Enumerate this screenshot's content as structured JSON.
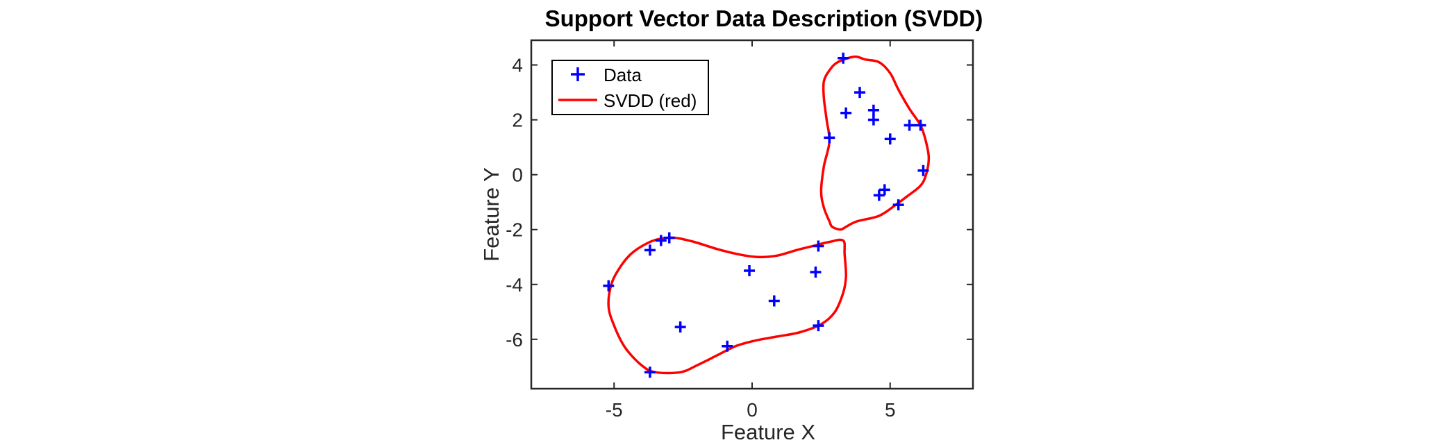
{
  "chart_data": {
    "type": "scatter",
    "title": "Support Vector Data Description (SVDD)",
    "xlabel": "Feature X",
    "ylabel": "Feature Y",
    "xlim": [
      -8,
      8
    ],
    "ylim": [
      -7.8,
      4.9
    ],
    "xticks": [
      -5,
      0,
      5
    ],
    "yticks": [
      -6,
      -4,
      -2,
      0,
      2,
      4
    ],
    "grid": false,
    "legend_location": "top-left",
    "legend": [
      {
        "label": "Data",
        "marker": "+",
        "color": "#0000ff"
      },
      {
        "label": "SVDD (red)",
        "marker": "line",
        "color": "#ff0000"
      }
    ],
    "series": [
      {
        "name": "Data",
        "kind": "scatter",
        "marker": "+",
        "color": "#0000ff",
        "points": [
          [
            3.3,
            4.25
          ],
          [
            3.9,
            3.0
          ],
          [
            4.4,
            2.35
          ],
          [
            3.4,
            2.25
          ],
          [
            4.4,
            2.0
          ],
          [
            5.7,
            1.8
          ],
          [
            6.1,
            1.8
          ],
          [
            2.8,
            1.35
          ],
          [
            5.0,
            1.3
          ],
          [
            6.2,
            0.15
          ],
          [
            4.8,
            -0.55
          ],
          [
            4.6,
            -0.75
          ],
          [
            5.3,
            -1.1
          ],
          [
            -3.7,
            -2.75
          ],
          [
            -3.3,
            -2.4
          ],
          [
            -3.0,
            -2.3
          ],
          [
            2.4,
            -2.6
          ],
          [
            -5.2,
            -4.05
          ],
          [
            -0.1,
            -3.5
          ],
          [
            2.3,
            -3.55
          ],
          [
            0.8,
            -4.6
          ],
          [
            -2.6,
            -5.55
          ],
          [
            2.4,
            -5.5
          ],
          [
            -0.9,
            -6.25
          ],
          [
            -3.7,
            -7.2
          ]
        ]
      },
      {
        "name": "SVDD (red)",
        "kind": "line",
        "color": "#ff0000",
        "boundaries": [
          [
            [
              2.8,
              -1.7
            ],
            [
              2.6,
              -1.2
            ],
            [
              2.5,
              -0.6
            ],
            [
              2.6,
              0.3
            ],
            [
              2.8,
              1.2
            ],
            [
              2.7,
              2.0
            ],
            [
              2.6,
              2.8
            ],
            [
              2.6,
              3.4
            ],
            [
              2.8,
              3.8
            ],
            [
              3.1,
              4.1
            ],
            [
              3.7,
              4.3
            ],
            [
              4.1,
              4.2
            ],
            [
              4.6,
              4.1
            ],
            [
              5.0,
              3.7
            ],
            [
              5.3,
              3.1
            ],
            [
              5.7,
              2.4
            ],
            [
              6.1,
              1.8
            ],
            [
              6.3,
              1.2
            ],
            [
              6.4,
              0.6
            ],
            [
              6.3,
              0.0
            ],
            [
              6.1,
              -0.4
            ],
            [
              5.6,
              -0.8
            ],
            [
              5.2,
              -1.1
            ],
            [
              4.6,
              -1.5
            ],
            [
              3.8,
              -1.7
            ],
            [
              3.4,
              -1.9
            ],
            [
              3.2,
              -2.0
            ],
            [
              2.9,
              -1.9
            ],
            [
              2.8,
              -1.7
            ]
          ],
          [
            [
              3.3,
              -2.4
            ],
            [
              2.8,
              -2.45
            ],
            [
              2.2,
              -2.6
            ],
            [
              1.6,
              -2.75
            ],
            [
              0.9,
              -2.95
            ],
            [
              0.2,
              -3.0
            ],
            [
              -0.5,
              -2.9
            ],
            [
              -1.3,
              -2.7
            ],
            [
              -2.1,
              -2.45
            ],
            [
              -2.8,
              -2.3
            ],
            [
              -3.4,
              -2.35
            ],
            [
              -3.9,
              -2.55
            ],
            [
              -4.4,
              -2.9
            ],
            [
              -4.8,
              -3.4
            ],
            [
              -5.1,
              -4.0
            ],
            [
              -5.2,
              -4.8
            ],
            [
              -5.0,
              -5.5
            ],
            [
              -4.6,
              -6.3
            ],
            [
              -4.0,
              -6.95
            ],
            [
              -3.5,
              -7.2
            ],
            [
              -2.6,
              -7.2
            ],
            [
              -2.0,
              -6.95
            ],
            [
              -1.3,
              -6.6
            ],
            [
              -0.6,
              -6.25
            ],
            [
              0.1,
              -6.05
            ],
            [
              0.9,
              -5.9
            ],
            [
              1.7,
              -5.75
            ],
            [
              2.5,
              -5.45
            ],
            [
              3.0,
              -5.0
            ],
            [
              3.3,
              -4.3
            ],
            [
              3.4,
              -3.7
            ],
            [
              3.35,
              -2.9
            ],
            [
              3.3,
              -2.4
            ]
          ]
        ]
      }
    ]
  }
}
